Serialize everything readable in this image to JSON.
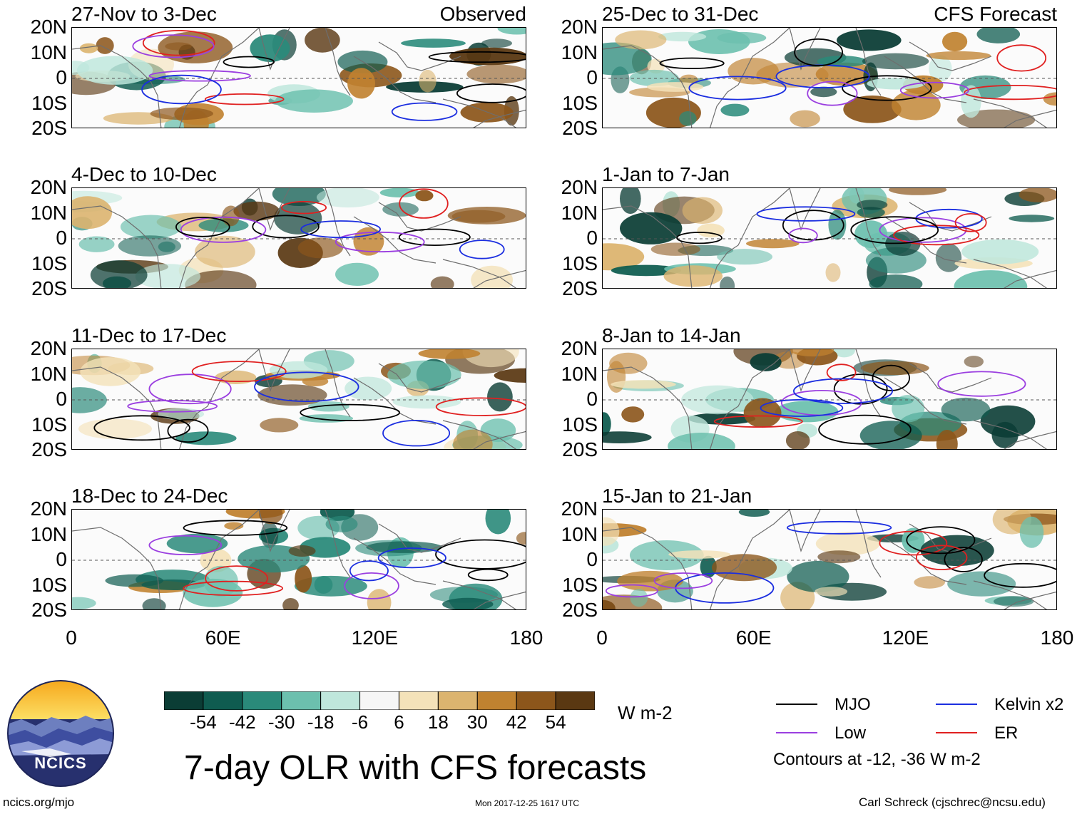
{
  "panels": [
    {
      "title": "27-Nov to 3-Dec",
      "tag": "Observed"
    },
    {
      "title": "25-Dec to 31-Dec",
      "tag": "CFS Forecast"
    },
    {
      "title": "4-Dec to 10-Dec",
      "tag": ""
    },
    {
      "title": "1-Jan to 7-Jan",
      "tag": ""
    },
    {
      "title": "11-Dec to 17-Dec",
      "tag": ""
    },
    {
      "title": "8-Jan to 14-Jan",
      "tag": ""
    },
    {
      "title": "18-Dec to 24-Dec",
      "tag": ""
    },
    {
      "title": "15-Jan to 21-Jan",
      "tag": ""
    }
  ],
  "lat_labels": [
    "20N",
    "10N",
    "0",
    "10S",
    "20S"
  ],
  "lon_labels": [
    "0",
    "60E",
    "120E",
    "180"
  ],
  "colorbar": {
    "ticks": [
      "-54",
      "-42",
      "-30",
      "-18",
      "-6",
      "6",
      "18",
      "30",
      "42",
      "54"
    ],
    "colors": [
      "#0b3d35",
      "#0f5c50",
      "#2a8a7a",
      "#6cc0ae",
      "#bfe7dc",
      "#f6f6f6",
      "#f4e2b9",
      "#dcb46f",
      "#c08230",
      "#8c561b",
      "#5a3812"
    ],
    "units": "W m-2"
  },
  "main_title": "7-day OLR with CFS forecasts",
  "legend": {
    "items": [
      {
        "label": "MJO",
        "color": "#000000"
      },
      {
        "label": "Kelvin x2",
        "color": "#1b2ee0"
      },
      {
        "label": "Low",
        "color": "#9b3fe0"
      },
      {
        "label": "ER",
        "color": "#e02020"
      }
    ],
    "note": "Contours at -12, -36 W m-2"
  },
  "logo": {
    "text": "NCICS"
  },
  "footer": {
    "url": "ncics.org/mjo",
    "timestamp": "Mon 2017-12-25 1617 UTC",
    "credit": "Carl Schreck (cjschrec@ncsu.edu)"
  }
}
